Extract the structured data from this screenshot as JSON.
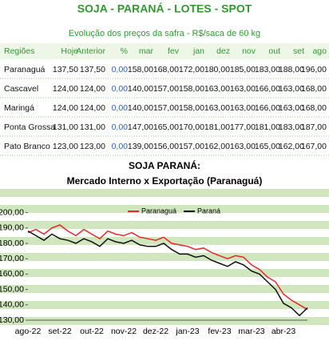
{
  "table": {
    "title": "SOJA - PARANÁ - LOTES - SPOT",
    "subtitle": "Evolução dos preços da safra - R$/saca de 60 kg",
    "header": [
      "Regiões",
      "Hoje",
      "Anterior",
      "%",
      "mar",
      "fev",
      "jan",
      "dez",
      "nov",
      "out",
      "set",
      "ago"
    ],
    "rows": [
      [
        "Paranaguá",
        "137,50",
        "137,50",
        "0,00",
        "158,00",
        "168,00",
        "172,00",
        "180,00",
        "185,00",
        "183,00",
        "188,00",
        "196,00"
      ],
      [
        "Cascavel",
        "124,00",
        "124,00",
        "0,00",
        "140,00",
        "157,00",
        "158,00",
        "163,00",
        "163,00",
        "166,00",
        "163,00",
        "168,00"
      ],
      [
        "Maringá",
        "124,00",
        "124,00",
        "0,00",
        "140,00",
        "157,00",
        "158,00",
        "163,00",
        "163,00",
        "166,00",
        "163,00",
        "168,00"
      ],
      [
        "Ponta Grossa",
        "131,00",
        "131,00",
        "0,00",
        "147,00",
        "165,00",
        "170,00",
        "181,00",
        "177,00",
        "181,00",
        "183,00",
        "187,00"
      ],
      [
        "Pato Branco",
        "123,00",
        "123,00",
        "0,00",
        "139,00",
        "156,00",
        "157,00",
        "162,00",
        "163,00",
        "165,00",
        "162,00",
        "167,00"
      ]
    ]
  },
  "chart_data": {
    "type": "line",
    "title": "SOJA PARANÁ:",
    "subtitle": "Mercado Interno x Exportação (Paranaguá)",
    "categories": [
      "ago-22",
      null,
      null,
      null,
      "set-22",
      null,
      null,
      null,
      "out-22",
      null,
      null,
      null,
      "nov-22",
      null,
      null,
      null,
      "dez-22",
      null,
      null,
      null,
      "jan-23",
      null,
      null,
      null,
      "fev-23",
      null,
      null,
      null,
      "mar-23",
      null,
      null,
      null,
      "abr-23",
      null,
      null,
      null
    ],
    "series": [
      {
        "name": "Paranaguá",
        "color": "#e8262a",
        "values": [
          187,
          189,
          186,
          190,
          192,
          188,
          185,
          189,
          186,
          183,
          188,
          186,
          185,
          187,
          184,
          183,
          182,
          184,
          180,
          179,
          178,
          176,
          177,
          174,
          172,
          170,
          172,
          171,
          166,
          163,
          158,
          155,
          147,
          143,
          140,
          137
        ]
      },
      {
        "name": "Paraná",
        "color": "#111111",
        "values": [
          188,
          185,
          182,
          186,
          183,
          182,
          180,
          183,
          181,
          178,
          183,
          181,
          180,
          182,
          179,
          178,
          178,
          180,
          176,
          173,
          173,
          171,
          172,
          169,
          167,
          165,
          168,
          166,
          162,
          160,
          155,
          150,
          141,
          138,
          133,
          138
        ]
      }
    ],
    "ylim": [
      130,
      205
    ],
    "yticks": [
      {
        "value": 130,
        "label": "130,00"
      },
      {
        "value": 140,
        "label": "140,00"
      },
      {
        "value": 150,
        "label": "150,00"
      },
      {
        "value": 160,
        "label": "160,00"
      },
      {
        "value": 170,
        "label": "170,00"
      },
      {
        "value": 180,
        "label": "180,00"
      },
      {
        "value": 190,
        "label": "190,00"
      },
      {
        "value": 200,
        "label": "200,00"
      }
    ],
    "legend": "top"
  }
}
